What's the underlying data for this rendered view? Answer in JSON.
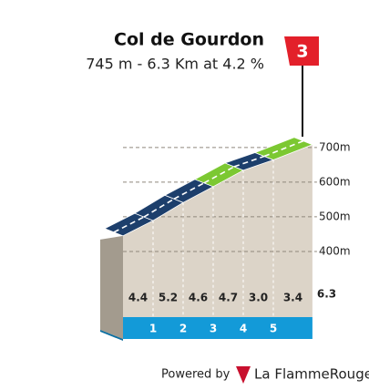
{
  "chart_data": {
    "type": "climb-profile",
    "title": "Col de Gourdon",
    "subtitle": "745 m - 6.3 Km at 4.2 %",
    "category": "3",
    "summit_elevation": 745,
    "distance": 6.3,
    "xticks": [
      1,
      2,
      3,
      4,
      5
    ],
    "values": [
      4.4,
      5.2,
      4.6,
      4.7,
      3.0,
      3.4
    ],
    "value_labels": [
      "4.4",
      "5.2",
      "4.6",
      "4.7",
      "3.0",
      "3.4"
    ],
    "colors": [
      "#1d3f6c",
      "#1d3f6c",
      "#1d3f6c",
      "#7cc832",
      "#1d3f6c",
      "#7cc832"
    ],
    "ylim": [
      250,
      760
    ],
    "yticks": [
      {
        "value": 400,
        "label": "400m"
      },
      {
        "value": 500,
        "label": "500m"
      },
      {
        "value": 600,
        "label": "600m"
      },
      {
        "value": 700,
        "label": "700m"
      }
    ],
    "grid": true
  },
  "footer": {
    "powered": "Powered by",
    "brand": "La FlammeRouge"
  }
}
